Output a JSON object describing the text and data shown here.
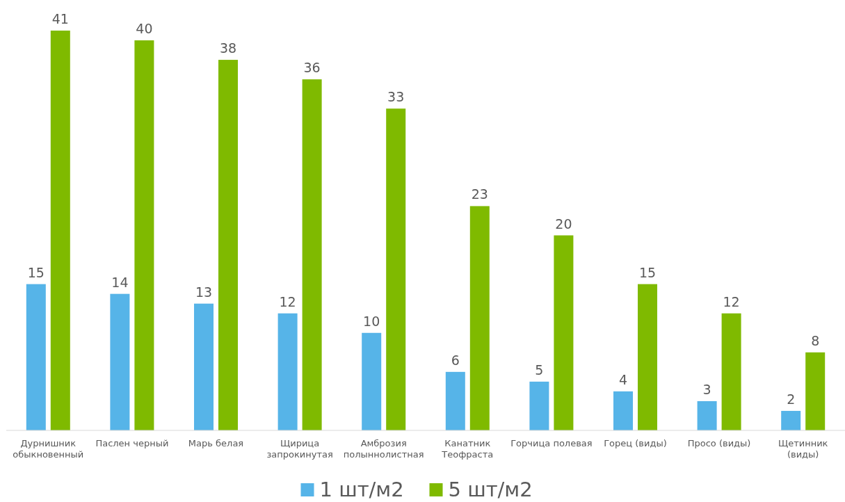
{
  "chart_data": {
    "type": "bar",
    "categories": [
      "Дурнишник\nобыкновенный",
      "Паслен черный",
      "Марь белая",
      "Щирица\nзапрокинутая",
      "Амброзия\nполыннолистная",
      "Канатник\nТеофраста",
      "Горчица полевая",
      "Горец (виды)",
      "Просо (виды)",
      "Щетинник\n(виды)"
    ],
    "series": [
      {
        "name": "1 шт/м2",
        "color": "#56b4e8",
        "values": [
          15,
          14,
          13,
          12,
          10,
          6,
          5,
          4,
          3,
          2
        ]
      },
      {
        "name": "5 шт/м2",
        "color": "#7fba00",
        "values": [
          41,
          40,
          38,
          36,
          33,
          23,
          20,
          15,
          12,
          8
        ]
      }
    ],
    "data_labels": true,
    "legend": "bottom"
  }
}
